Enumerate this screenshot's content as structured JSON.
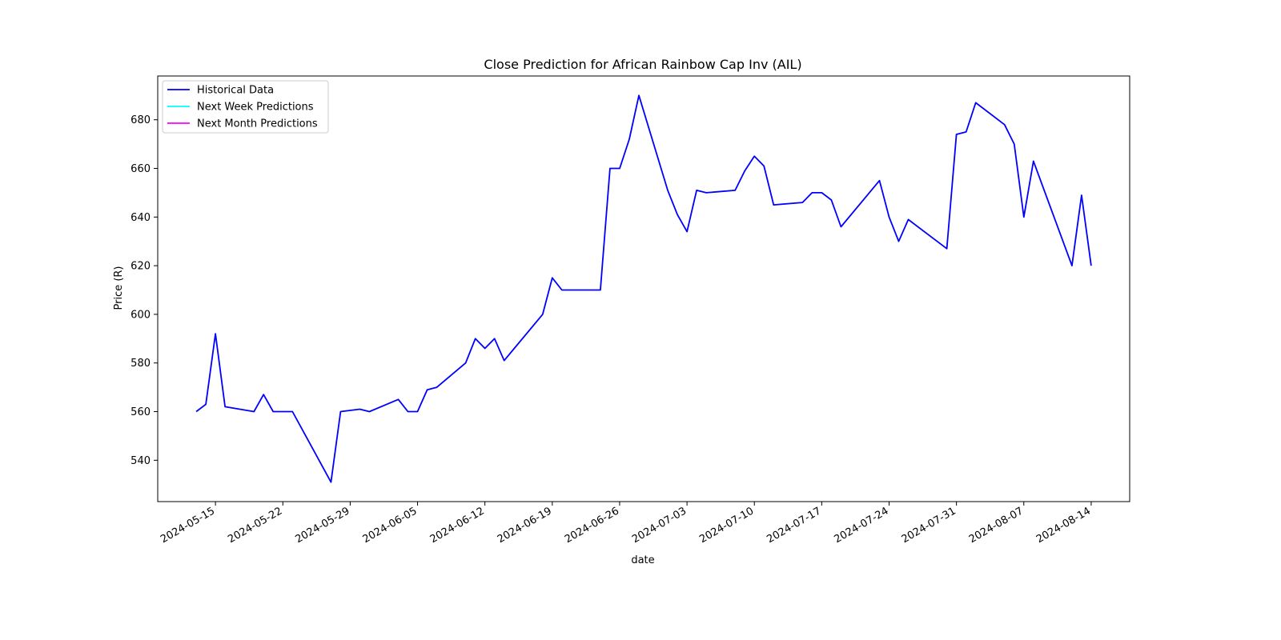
{
  "chart_data": {
    "type": "line",
    "title": "Close Prediction for African Rainbow Cap Inv (AIL)",
    "xlabel": "date",
    "ylabel": "Price (R)",
    "xlim": [
      "2024-05-09",
      "2024-08-18"
    ],
    "ylim": [
      523,
      698
    ],
    "x_ticks": [
      "2024-05-15",
      "2024-05-22",
      "2024-05-29",
      "2024-06-05",
      "2024-06-12",
      "2024-06-19",
      "2024-06-26",
      "2024-07-03",
      "2024-07-10",
      "2024-07-17",
      "2024-07-24",
      "2024-07-31",
      "2024-08-07",
      "2024-08-14"
    ],
    "y_ticks": [
      540,
      560,
      580,
      600,
      620,
      640,
      660,
      680
    ],
    "grid": false,
    "legend_position": "top-left",
    "series": [
      {
        "name": "Historical Data",
        "color": "#0000ff",
        "points": [
          [
            "2024-05-13",
            560
          ],
          [
            "2024-05-14",
            563
          ],
          [
            "2024-05-15",
            592
          ],
          [
            "2024-05-16",
            562
          ],
          [
            "2024-05-19",
            560
          ],
          [
            "2024-05-20",
            567
          ],
          [
            "2024-05-21",
            560
          ],
          [
            "2024-05-23",
            560
          ],
          [
            "2024-05-27",
            531
          ],
          [
            "2024-05-28",
            560
          ],
          [
            "2024-05-30",
            561
          ],
          [
            "2024-05-31",
            560
          ],
          [
            "2024-06-03",
            565
          ],
          [
            "2024-06-04",
            560
          ],
          [
            "2024-06-05",
            560
          ],
          [
            "2024-06-06",
            569
          ],
          [
            "2024-06-07",
            570
          ],
          [
            "2024-06-10",
            580
          ],
          [
            "2024-06-11",
            590
          ],
          [
            "2024-06-12",
            586
          ],
          [
            "2024-06-13",
            590
          ],
          [
            "2024-06-14",
            581
          ],
          [
            "2024-06-18",
            600
          ],
          [
            "2024-06-19",
            615
          ],
          [
            "2024-06-20",
            610
          ],
          [
            "2024-06-24",
            610
          ],
          [
            "2024-06-25",
            660
          ],
          [
            "2024-06-26",
            660
          ],
          [
            "2024-06-27",
            672
          ],
          [
            "2024-06-28",
            690
          ],
          [
            "2024-07-01",
            651
          ],
          [
            "2024-07-02",
            641
          ],
          [
            "2024-07-03",
            634
          ],
          [
            "2024-07-04",
            651
          ],
          [
            "2024-07-05",
            650
          ],
          [
            "2024-07-08",
            651
          ],
          [
            "2024-07-09",
            659
          ],
          [
            "2024-07-10",
            665
          ],
          [
            "2024-07-11",
            661
          ],
          [
            "2024-07-12",
            645
          ],
          [
            "2024-07-15",
            646
          ],
          [
            "2024-07-16",
            650
          ],
          [
            "2024-07-17",
            650
          ],
          [
            "2024-07-18",
            647
          ],
          [
            "2024-07-19",
            636
          ],
          [
            "2024-07-23",
            655
          ],
          [
            "2024-07-24",
            640
          ],
          [
            "2024-07-25",
            630
          ],
          [
            "2024-07-26",
            639
          ],
          [
            "2024-07-30",
            627
          ],
          [
            "2024-07-31",
            674
          ],
          [
            "2024-08-01",
            675
          ],
          [
            "2024-08-02",
            687
          ],
          [
            "2024-08-05",
            678
          ],
          [
            "2024-08-06",
            670
          ],
          [
            "2024-08-07",
            640
          ],
          [
            "2024-08-08",
            663
          ],
          [
            "2024-08-12",
            620
          ],
          [
            "2024-08-13",
            649
          ],
          [
            "2024-08-14",
            620
          ]
        ]
      },
      {
        "name": "Next Week Predictions",
        "color": "#00ffff",
        "points": []
      },
      {
        "name": "Next Month Predictions",
        "color": "#ff00ff",
        "points": []
      }
    ]
  }
}
